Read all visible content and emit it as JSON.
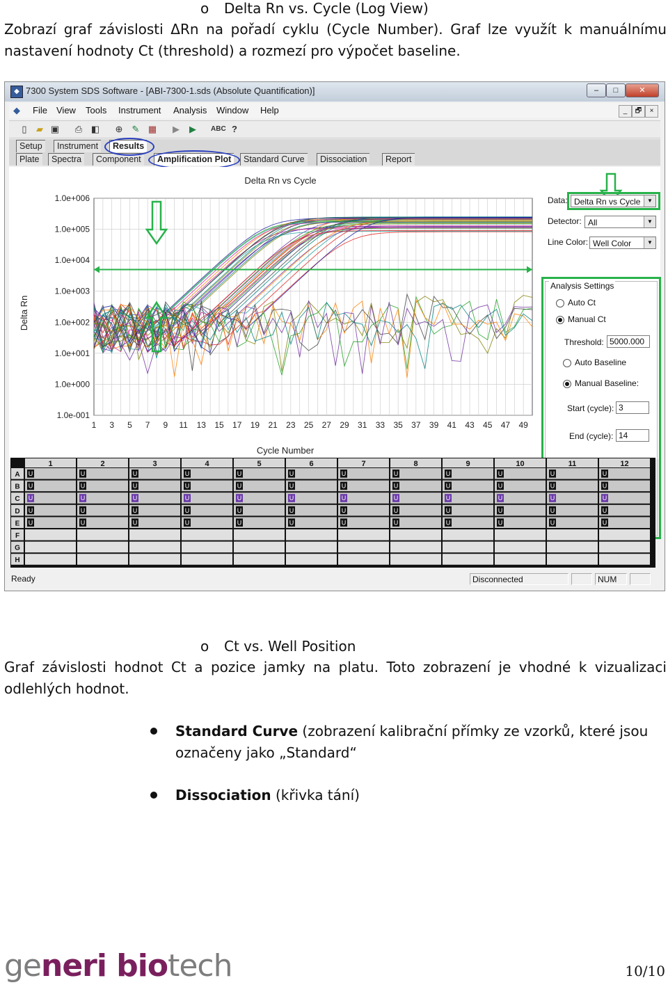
{
  "section1": {
    "marker": "o",
    "heading": "Delta Rn vs. Cycle (Log View)",
    "paragraph": "Zobrazí graf závislosti ΔRn na pořadí cyklu (Cycle Number). Graf lze využít k manuálnímu nastavení hodnoty Ct (threshold) a rozmezí pro výpočet baseline."
  },
  "window": {
    "title": "7300 System SDS Software - [ABI-7300-1.sds (Absolute Quantification)]",
    "controls": [
      "–",
      "□",
      "✕"
    ],
    "mdi_controls": [
      "_",
      "🗗",
      "×"
    ],
    "menu": [
      "File",
      "View",
      "Tools",
      "Instrument",
      "Analysis",
      "Window",
      "Help"
    ],
    "toolbar_icons": [
      "new-icon",
      "open-icon",
      "save-icon",
      "print-icon",
      "print-preview-icon",
      "zoom-icon",
      "edit-icon",
      "table-icon",
      "run-icon",
      "play-icon",
      "spell-icon",
      "help-icon"
    ],
    "tabs_row1": [
      "Setup",
      "Instrument",
      "Results"
    ],
    "tabs_row2": [
      "Plate",
      "Spectra",
      "Component",
      "Amplification Plot",
      "Standard Curve",
      "Dissociation",
      "Report"
    ],
    "panel": {
      "data_label": "Data:",
      "data_value": "Delta Rn vs Cycle",
      "detector_label": "Detector:",
      "detector_value": "All",
      "line_color_label": "Line Color:",
      "line_color_value": "Well Color",
      "analysis_settings": "Analysis Settings",
      "auto_ct": "Auto Ct",
      "manual_ct": "Manual Ct",
      "threshold_label": "Threshold:",
      "threshold_value": "5000.000",
      "auto_baseline": "Auto Baseline",
      "manual_baseline": "Manual Baseline:",
      "start_label": "Start (cycle):",
      "start_value": "3",
      "end_label": "End (cycle):",
      "end_value": "14"
    },
    "plate": {
      "columns": [
        "1",
        "2",
        "3",
        "4",
        "5",
        "6",
        "7",
        "8",
        "9",
        "10",
        "11",
        "12"
      ],
      "rows": [
        "A",
        "B",
        "C",
        "D",
        "E",
        "F",
        "G",
        "H"
      ],
      "cell_mark": "U",
      "filled_rows": [
        "A",
        "B",
        "C",
        "D",
        "E"
      ],
      "highlight_row": "C"
    },
    "status": {
      "left": "Ready",
      "mid": "Disconnected",
      "right": "NUM"
    }
  },
  "chart_data": {
    "type": "line",
    "title": "Delta Rn vs Cycle",
    "xlabel": "Cycle Number",
    "ylabel": "Delta Rn",
    "x_ticks": [
      "1",
      "3",
      "5",
      "7",
      "9",
      "11",
      "13",
      "15",
      "17",
      "19",
      "21",
      "23",
      "25",
      "27",
      "29",
      "31",
      "33",
      "35",
      "37",
      "39",
      "41",
      "43",
      "45",
      "47",
      "49"
    ],
    "y_ticks": [
      "1.0e+006",
      "1.0e+005",
      "1.0e+004",
      "1.0e+003",
      "1.0e+002",
      "1.0e+001",
      "1.0e+000",
      "1.0e-001"
    ],
    "xlim": [
      1,
      50
    ],
    "y_scale": "log",
    "ylim": [
      0.1,
      1000000
    ],
    "grid": true,
    "threshold": 5000,
    "baseline_start": 3,
    "baseline_end": 14,
    "curve_count": 40,
    "ct_range": [
      14,
      26
    ],
    "plateau": 200000,
    "colors": [
      "#e02020",
      "#1a1aa0",
      "#d02090",
      "#20a0a0",
      "#808000",
      "#404040",
      "#20a020",
      "#ff8000",
      "#7030a0",
      "#008080"
    ]
  },
  "section2": {
    "marker": "o",
    "heading": "Ct vs. Well Position",
    "paragraph": "Graf závislosti hodnot Ct a pozice jamky na platu. Toto zobrazení je vhodné k vizualizaci odlehlých hodnot."
  },
  "bullets": [
    {
      "bold": "Standard Curve",
      "rest": " (zobrazení kalibrační přímky ze vzorků, které jsou označeny jako „Standard“"
    },
    {
      "bold": "Dissociation",
      "rest": " (křivka tání)"
    }
  ],
  "footer": {
    "logo": [
      "ge",
      "neri ",
      "bio",
      "tech"
    ],
    "page": "10/10"
  },
  "colors": {
    "annotation_green": "#27b24a",
    "annotation_blue": "#2a3fbf",
    "logo_purple": "#7a1f5d",
    "logo_gray": "#7d7d7d"
  }
}
